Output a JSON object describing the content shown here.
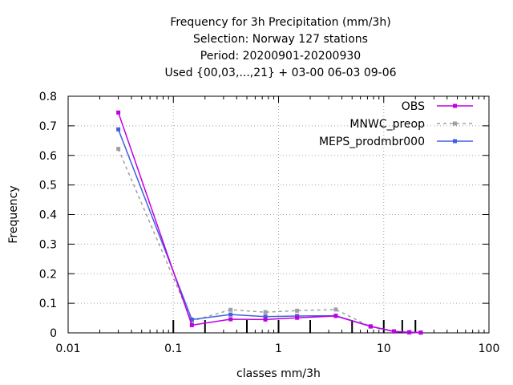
{
  "chart_data": {
    "type": "line",
    "title_lines": [
      "Frequency  for 3h Precipitation (mm/3h)",
      "Selection: Norway    127 stations",
      "Period: 20200901-20200930",
      "Used {00,03,...,21} + 03-00 06-03 09-06"
    ],
    "xlabel": "classes mm/3h",
    "ylabel": "Frequency",
    "xscale": "log",
    "xlim": [
      0.01,
      100
    ],
    "ylim": [
      0,
      0.8
    ],
    "x_ticks": [
      0.01,
      0.1,
      1,
      10,
      100
    ],
    "x_tick_labels": [
      "0.01",
      "0.1",
      "1",
      "10",
      "100"
    ],
    "y_ticks": [
      0,
      0.1,
      0.2,
      0.3,
      0.4,
      0.5,
      0.6,
      0.7,
      0.8
    ],
    "y_tick_labels": [
      "0",
      "0.1",
      "0.2",
      "0.3",
      "0.4",
      "0.5",
      "0.6",
      "0.7",
      "0.8"
    ],
    "grid": true,
    "legend_position": "top-right",
    "class_boundaries": [
      0.1,
      0.2,
      0.5,
      1,
      2,
      5,
      10,
      15,
      20
    ],
    "x": [
      0.03,
      0.15,
      0.35,
      0.75,
      1.5,
      3.5,
      7.5,
      12.5,
      17.5,
      22.5
    ],
    "series": [
      {
        "name": "OBS",
        "color": "#c000e0",
        "dash": "",
        "values": [
          0.745,
          0.026,
          0.046,
          0.045,
          0.051,
          0.057,
          0.022,
          0.005,
          0.002,
          0.001
        ]
      },
      {
        "name": "MNWC_preop",
        "color": "#a0a0a0",
        "dash": "4,4",
        "values": [
          0.622,
          0.04,
          0.078,
          0.07,
          0.075,
          0.079,
          0.021,
          0.005,
          0.002,
          0.001
        ]
      },
      {
        "name": "MEPS_prodmbr000",
        "color": "#4060e0",
        "dash": "",
        "values": [
          0.688,
          0.045,
          0.062,
          0.055,
          0.057,
          0.058,
          0.022,
          0.005,
          0.002,
          0.001
        ]
      }
    ]
  }
}
